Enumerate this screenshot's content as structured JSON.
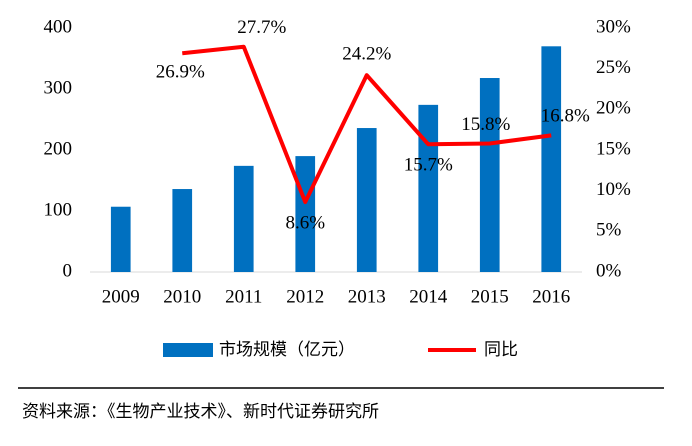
{
  "chart_data": {
    "type": "bar-line",
    "categories": [
      "2009",
      "2010",
      "2011",
      "2012",
      "2013",
      "2014",
      "2015",
      "2016"
    ],
    "series": [
      {
        "name": "市场规模（亿元）",
        "type": "bar",
        "color": "#0070c0",
        "values": [
          107,
          136,
          174,
          190,
          236,
          274,
          318,
          370
        ]
      },
      {
        "name": "同比",
        "type": "line",
        "color": "#ff0000",
        "axis": "y2",
        "values": [
          null,
          26.9,
          27.7,
          8.6,
          24.2,
          15.7,
          15.8,
          16.8
        ],
        "value_labels": [
          null,
          "26.9%",
          "27.7%",
          "8.6%",
          "24.2%",
          "15.7%",
          "15.8%",
          "16.8%"
        ]
      }
    ],
    "ylim": [
      0,
      400
    ],
    "yticks": [
      0,
      100,
      200,
      300,
      400
    ],
    "y2lim": [
      0,
      30
    ],
    "y2ticks": [
      {
        "value": 0,
        "label": "0%"
      },
      {
        "value": 5,
        "label": "5%"
      },
      {
        "value": 10,
        "label": "10%"
      },
      {
        "value": 15,
        "label": "15%"
      },
      {
        "value": 20,
        "label": "20%"
      },
      {
        "value": 25,
        "label": "25%"
      },
      {
        "value": 30,
        "label": "30%"
      }
    ],
    "grid": false,
    "source": "资料来源：《生物产业技术》、新时代证券研究所"
  }
}
